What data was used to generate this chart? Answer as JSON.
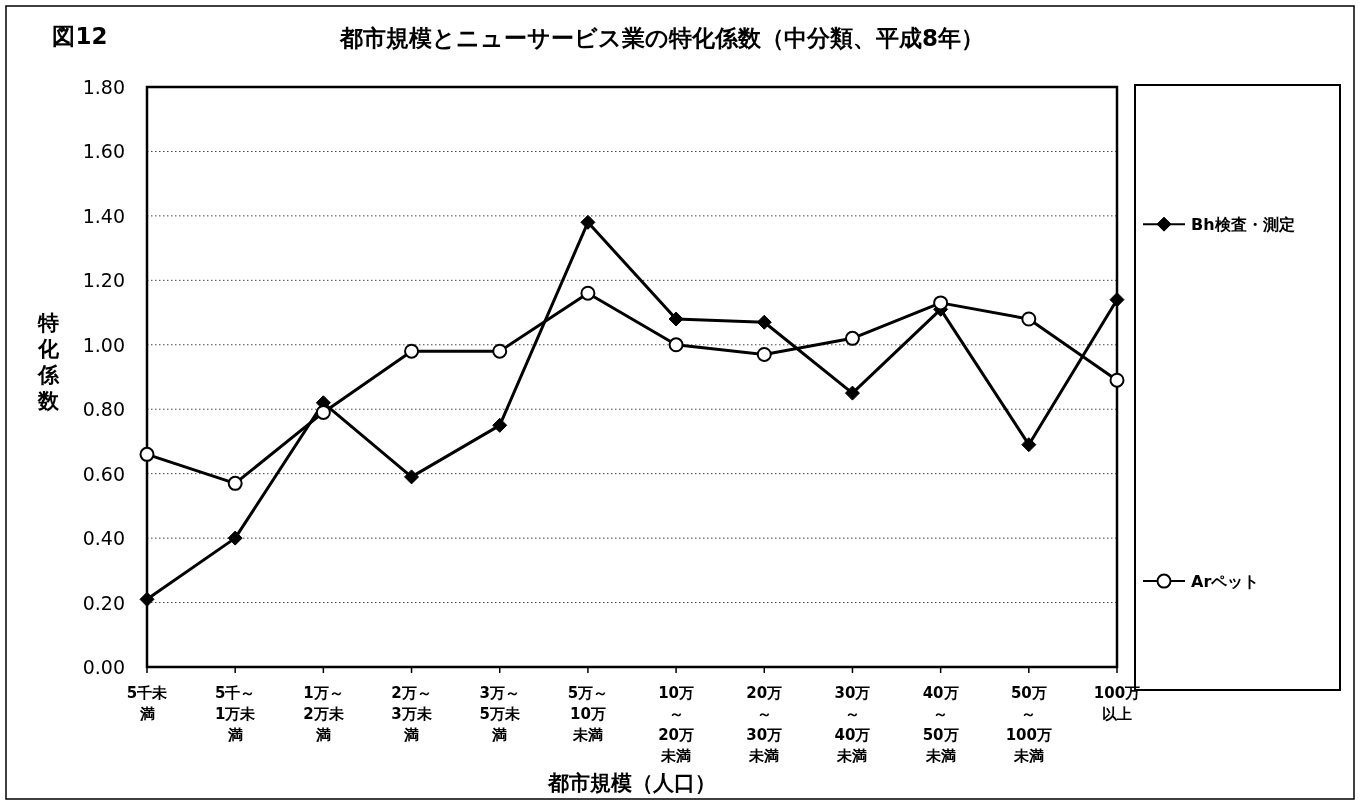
{
  "chart_data": {
    "type": "line",
    "title": "都市規模とニューサービス業の特化係数（中分類、平成8年）",
    "xlabel": "都市規模（人口）",
    "ylabel": "特化係数",
    "annotations": [
      "図12"
    ],
    "categories": [
      "5千未満",
      "5千～1万未満",
      "1万～2万未満",
      "2万～3万未満",
      "3万～5万未満",
      "5万～10万未満",
      "10万～20万未満",
      "20万～30万未満",
      "30万～40万未満",
      "40万～50万未満",
      "50万～100万未満",
      "100万以上"
    ],
    "series": [
      {
        "name": "Bh検査・測定",
        "color": "#000000",
        "marker": "diamond",
        "values": [
          0.21,
          0.4,
          0.82,
          0.59,
          0.75,
          1.38,
          1.08,
          1.07,
          0.85,
          1.11,
          0.69,
          1.14
        ]
      },
      {
        "name": "Arペット",
        "color": "#000000",
        "marker": "circle",
        "values": [
          0.66,
          0.57,
          0.79,
          0.98,
          0.98,
          1.16,
          1.0,
          0.97,
          1.02,
          1.13,
          1.08,
          0.89
        ]
      }
    ],
    "ylim": [
      0,
      1.8
    ],
    "yticks": [
      {
        "value": 0,
        "label": "0.00"
      },
      {
        "value": 0.2,
        "label": "0.20"
      },
      {
        "value": 0.4,
        "label": "0.40"
      },
      {
        "value": 0.6,
        "label": "0.60"
      },
      {
        "value": 0.8,
        "label": "0.80"
      },
      {
        "value": 1.0,
        "label": "1.00"
      },
      {
        "value": 1.2,
        "label": "1.20"
      },
      {
        "value": 1.4,
        "label": "1.40"
      },
      {
        "value": 1.6,
        "label": "1.60"
      },
      {
        "value": 1.8,
        "label": "1.80"
      }
    ],
    "grid": "y",
    "legend": "right",
    "line_style": "solid"
  }
}
